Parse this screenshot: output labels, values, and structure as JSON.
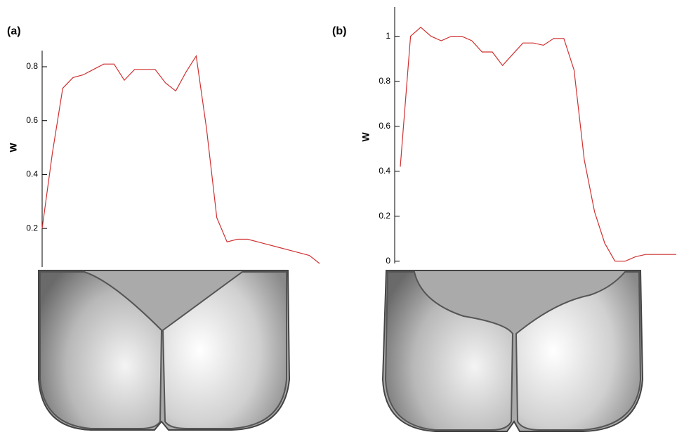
{
  "chart_data": [
    {
      "type": "line",
      "title": "(a)",
      "y_label": "W",
      "color": "#d03030",
      "ylim": [
        0.057,
        0.86
      ],
      "yticks": [
        0.2,
        0.4,
        0.6,
        0.8
      ],
      "values": [
        0.2,
        0.48,
        0.72,
        0.76,
        0.77,
        0.79,
        0.81,
        0.81,
        0.75,
        0.79,
        0.79,
        0.79,
        0.74,
        0.71,
        0.78,
        0.84,
        0.57,
        0.24,
        0.15,
        0.16,
        0.16,
        0.15,
        0.14,
        0.13,
        0.12,
        0.11,
        0.1,
        0.07
      ]
    },
    {
      "type": "line",
      "title": "(b)",
      "y_label": "W",
      "color": "#d03030",
      "ylim": [
        -0.01,
        1.13
      ],
      "yticks": [
        0,
        0.2,
        0.4,
        0.6,
        0.8,
        1
      ],
      "values": [
        0.42,
        1.0,
        1.04,
        1.0,
        0.98,
        1.0,
        1.0,
        0.98,
        0.93,
        0.93,
        0.87,
        0.92,
        0.97,
        0.97,
        0.96,
        0.99,
        0.99,
        0.85,
        0.45,
        0.22,
        0.08,
        0.0,
        0.0,
        0.02,
        0.03,
        0.03,
        0.03,
        0.03
      ]
    }
  ]
}
